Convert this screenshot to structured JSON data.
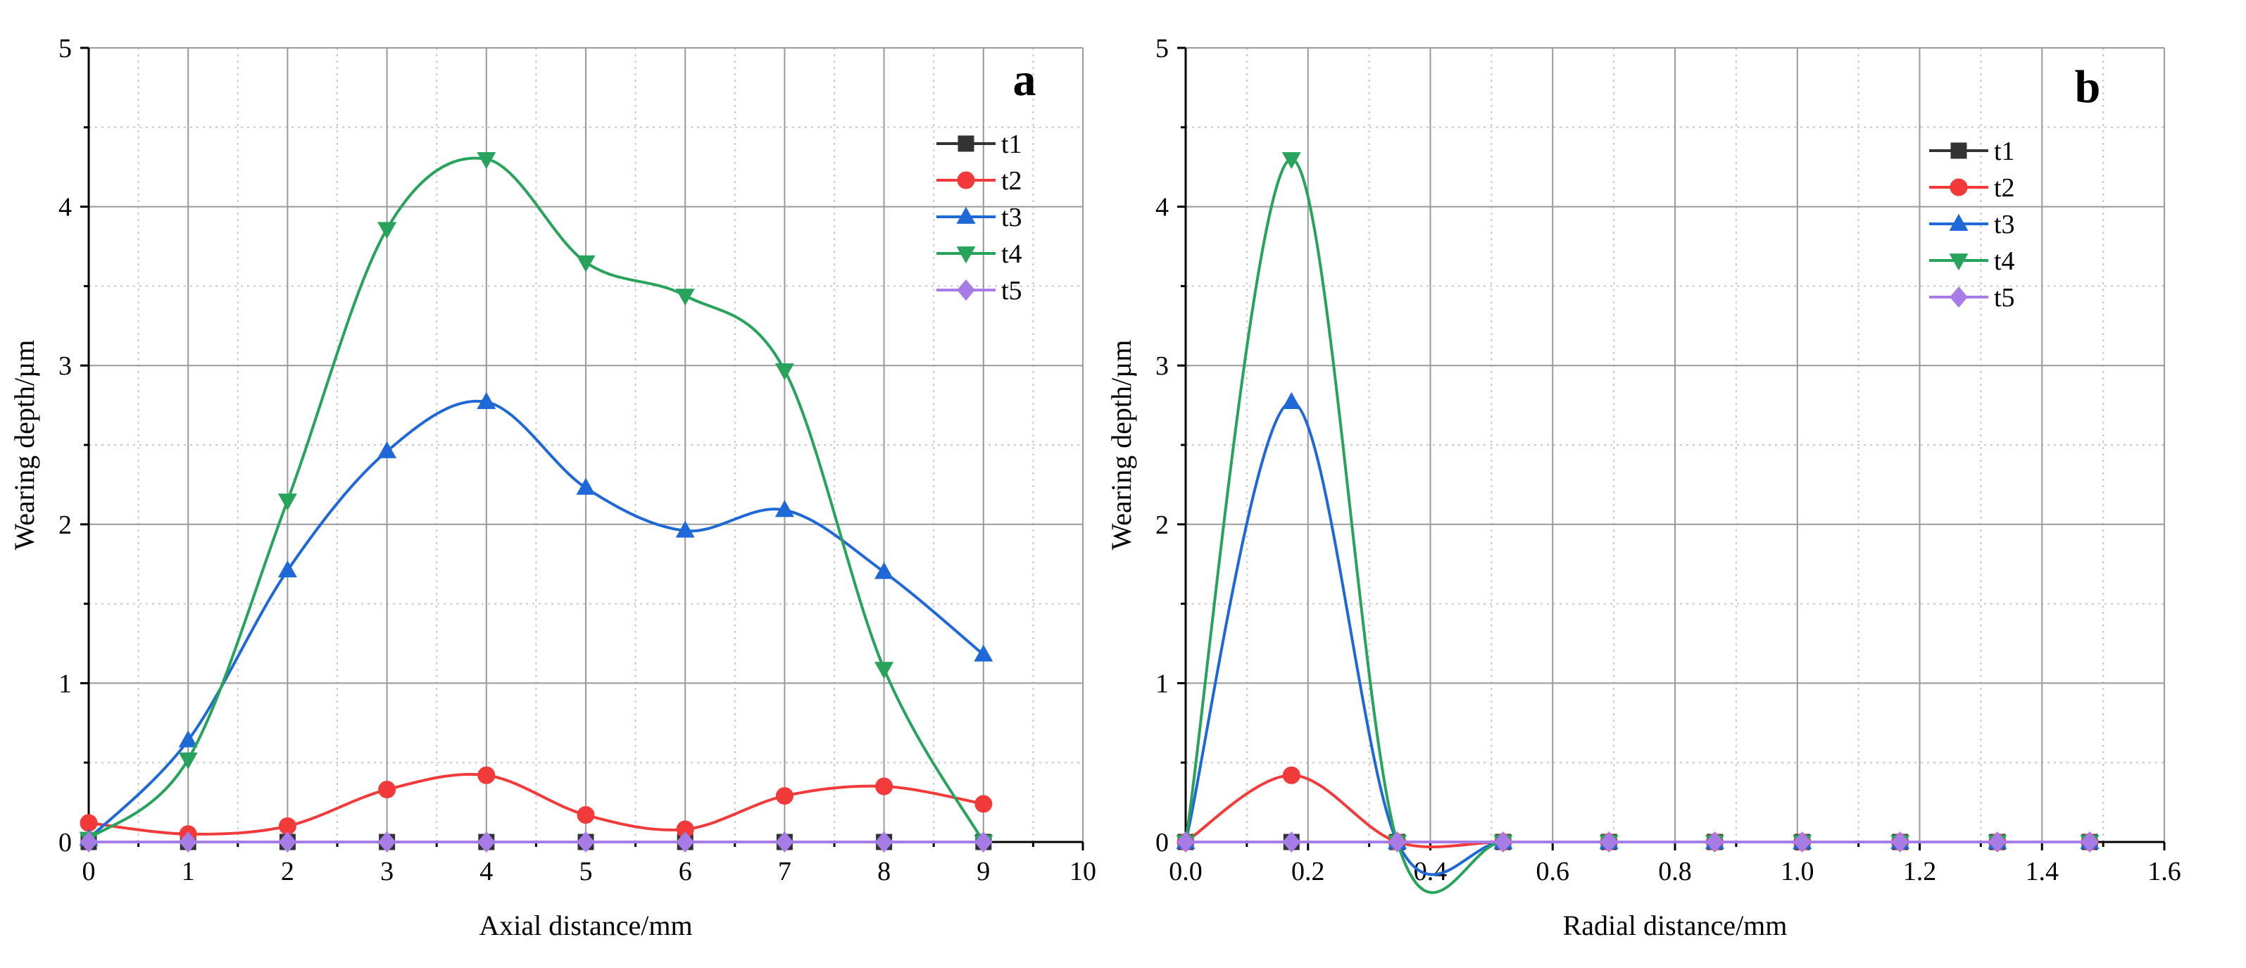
{
  "chart_data": [
    {
      "panel_label": "a",
      "type": "line",
      "xlabel": "Axial distance/mm",
      "ylabel": "Wearing depth/µm",
      "xlim": [
        0,
        10
      ],
      "ylim": [
        0,
        5
      ],
      "xticks": [
        "0",
        "1",
        "2",
        "3",
        "4",
        "5",
        "6",
        "7",
        "8",
        "9",
        "10"
      ],
      "yticks": [
        "0",
        "1",
        "2",
        "3",
        "4",
        "5"
      ],
      "grid": true,
      "legend_position": "top-right",
      "x": [
        0,
        1,
        2,
        3,
        4,
        5,
        6,
        7,
        8,
        9
      ],
      "series": [
        {
          "name": "t1",
          "color": "#333333",
          "marker": "square",
          "values": [
            0,
            0,
            0,
            0,
            0,
            0,
            0,
            0,
            0,
            0
          ]
        },
        {
          "name": "t2",
          "color": "#f23a3a",
          "marker": "circle",
          "values": [
            0.12,
            0.05,
            0.1,
            0.33,
            0.42,
            0.17,
            0.08,
            0.29,
            0.35,
            0.24
          ]
        },
        {
          "name": "t3",
          "color": "#1e68d7",
          "marker": "triangle-up",
          "values": [
            0.02,
            0.64,
            1.71,
            2.46,
            2.77,
            2.23,
            1.96,
            2.09,
            1.7,
            1.18
          ]
        },
        {
          "name": "t4",
          "color": "#28a35c",
          "marker": "triangle-down",
          "values": [
            0.02,
            0.52,
            2.15,
            3.86,
            4.3,
            3.65,
            3.44,
            2.97,
            1.09,
            0.0
          ]
        },
        {
          "name": "t5",
          "color": "#a77ce6",
          "marker": "diamond",
          "values": [
            0,
            0,
            0,
            0,
            0,
            0,
            0,
            0,
            0,
            0
          ]
        }
      ]
    },
    {
      "panel_label": "b",
      "type": "line",
      "xlabel": "Radial distance/mm",
      "ylabel": "Wearing depth/µm",
      "xlim": [
        0,
        1.6
      ],
      "ylim": [
        0,
        5
      ],
      "xticks": [
        "0.0",
        "0.2",
        "0.4",
        "0.6",
        "0.8",
        "1.0",
        "1.2",
        "1.4",
        "1.6"
      ],
      "yticks": [
        "0",
        "1",
        "2",
        "3",
        "4",
        "5"
      ],
      "grid": true,
      "legend_position": "top-right",
      "x": [
        0,
        0.173,
        0.346,
        0.519,
        0.692,
        0.865,
        1.008,
        1.168,
        1.327,
        1.478
      ],
      "series": [
        {
          "name": "t1",
          "color": "#333333",
          "marker": "square",
          "values": [
            0,
            0,
            0,
            0,
            0,
            0,
            0,
            0,
            0,
            0
          ]
        },
        {
          "name": "t2",
          "color": "#f23a3a",
          "marker": "circle",
          "values": [
            0,
            0.42,
            0,
            0,
            0,
            0,
            0,
            0,
            0,
            0
          ]
        },
        {
          "name": "t3",
          "color": "#1e68d7",
          "marker": "triangle-up",
          "values": [
            0,
            2.77,
            0,
            0,
            0,
            0,
            0,
            0,
            0,
            0
          ]
        },
        {
          "name": "t4",
          "color": "#28a35c",
          "marker": "triangle-down",
          "values": [
            0,
            4.3,
            0,
            0,
            0,
            0,
            0,
            0,
            0,
            0
          ]
        },
        {
          "name": "t5",
          "color": "#a77ce6",
          "marker": "diamond",
          "values": [
            0,
            0,
            0,
            0,
            0,
            0,
            0,
            0,
            0,
            0
          ]
        }
      ]
    }
  ]
}
